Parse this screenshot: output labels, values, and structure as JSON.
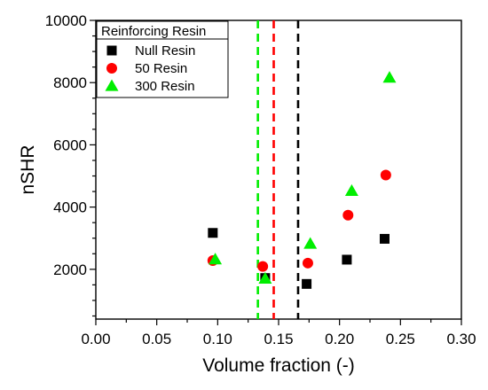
{
  "chart_data": {
    "type": "scatter",
    "xlabel": "Volume fraction (-)",
    "ylabel": "nSHR",
    "xlim": [
      0.0,
      0.3
    ],
    "ylim": [
      400,
      10000
    ],
    "xticks": [
      0.0,
      0.05,
      0.1,
      0.15,
      0.2,
      0.25,
      0.3
    ],
    "xtick_labels": [
      "0.00",
      "0.05",
      "0.10",
      "0.15",
      "0.20",
      "0.25",
      "0.30"
    ],
    "yticks": [
      2000,
      4000,
      6000,
      8000,
      10000
    ],
    "ytick_labels": [
      "2000",
      "4000",
      "6000",
      "8000",
      "10000"
    ],
    "grid": false,
    "legend": {
      "title": "Reinforcing Resin",
      "placement": "top-left"
    },
    "series": [
      {
        "name": "Null Resin",
        "marker": "square",
        "color": "#000000",
        "points": [
          {
            "x": 0.096,
            "y": 3170
          },
          {
            "x": 0.139,
            "y": 1720
          },
          {
            "x": 0.173,
            "y": 1530
          },
          {
            "x": 0.206,
            "y": 2310
          },
          {
            "x": 0.237,
            "y": 2980
          }
        ]
      },
      {
        "name": "50 Resin",
        "marker": "circle",
        "color": "#ff0000",
        "points": [
          {
            "x": 0.096,
            "y": 2280
          },
          {
            "x": 0.137,
            "y": 2090
          },
          {
            "x": 0.174,
            "y": 2200
          },
          {
            "x": 0.207,
            "y": 3740
          },
          {
            "x": 0.238,
            "y": 5030
          }
        ]
      },
      {
        "name": "300 Resin",
        "marker": "triangle",
        "color": "#00ee00",
        "points": [
          {
            "x": 0.098,
            "y": 2320
          },
          {
            "x": 0.139,
            "y": 1700
          },
          {
            "x": 0.176,
            "y": 2820
          },
          {
            "x": 0.21,
            "y": 4520
          },
          {
            "x": 0.241,
            "y": 8160
          }
        ]
      }
    ],
    "vertical_lines": [
      {
        "x": 0.133,
        "color": "#00ee00",
        "style": "dashed"
      },
      {
        "x": 0.146,
        "color": "#ff0000",
        "style": "dashed"
      },
      {
        "x": 0.166,
        "color": "#000000",
        "style": "dashed"
      }
    ]
  }
}
